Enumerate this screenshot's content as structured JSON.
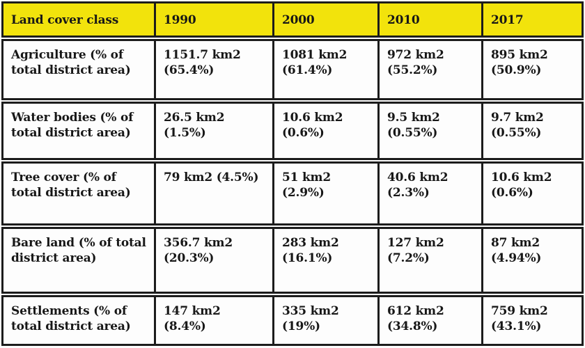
{
  "chart_data": {
    "type": "table",
    "columns": [
      "Land cover class",
      "1990",
      "2000",
      "2010",
      "2017"
    ],
    "rows": [
      {
        "label": "Agriculture (% of total district area)",
        "values": [
          "1151.7 km2 (65.4%)",
          "1081 km2 (61.4%)",
          "972 km2 (55.2%)",
          "895 km2 (50.9%)"
        ]
      },
      {
        "label": "Water bodies (% of total district area)",
        "values": [
          "26.5 km2 (1.5%)",
          "10.6 km2 (0.6%)",
          "9.5 km2 (0.55%)",
          "9.7 km2 (0.55%)"
        ]
      },
      {
        "label": "Tree cover (% of total district area)",
        "values": [
          "79 km2 (4.5%)",
          "51 km2 (2.9%)",
          "40.6 km2 (2.3%)",
          "10.6 km2 (0.6%)"
        ]
      },
      {
        "label": "Bare land (% of total district area)",
        "values": [
          "356.7 km2 (20.3%)",
          "283 km2 (16.1%)",
          "127 km2 (7.2%)",
          "87 km2 (4.94%)"
        ]
      },
      {
        "label": "Settlements (% of total district area)",
        "values": [
          "147 km2 (8.4%)",
          "335 km2 (19%)",
          "612 km2 (34.8%)",
          "759 km2 (43.1%)"
        ]
      }
    ],
    "layout": {
      "header_background": "#f2e30c",
      "border_color": "#1c1c1c",
      "text_color": "#171717",
      "grid": "on"
    }
  }
}
